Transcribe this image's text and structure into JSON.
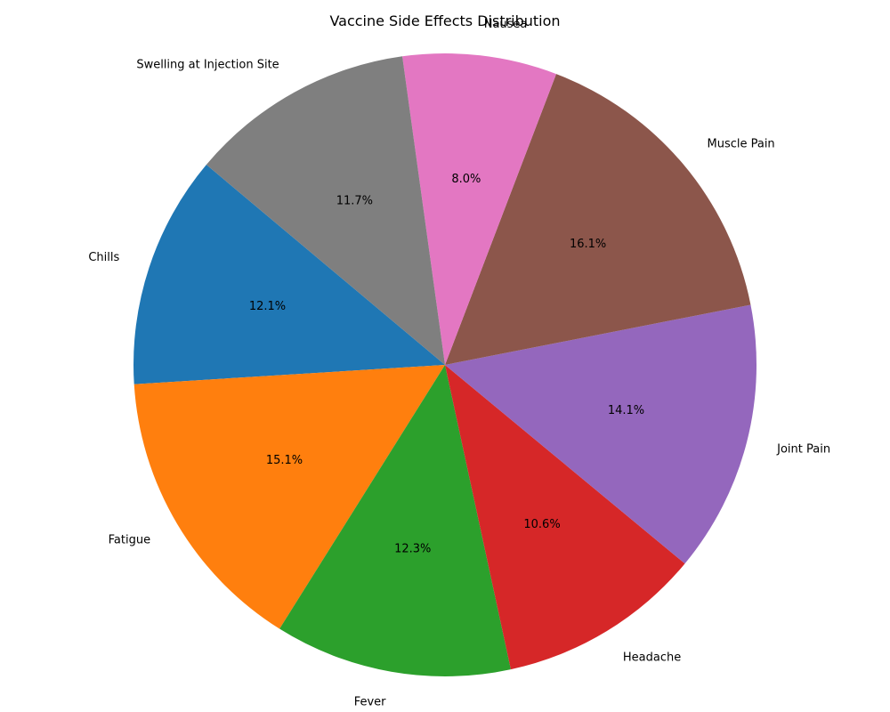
{
  "chart_data": {
    "type": "pie",
    "title": "Vaccine Side Effects Distribution",
    "categories": [
      "Chills",
      "Fatigue",
      "Fever",
      "Headache",
      "Joint Pain",
      "Muscle Pain",
      "Nausea",
      "Swelling at Injection Site"
    ],
    "values": [
      12.1,
      15.1,
      12.3,
      10.6,
      14.1,
      16.1,
      8.0,
      11.7
    ],
    "value_labels": [
      "12.1%",
      "15.1%",
      "12.3%",
      "10.6%",
      "14.1%",
      "16.1%",
      "8.0%",
      "11.7%"
    ],
    "colors": [
      "#1f77b4",
      "#ff7f0e",
      "#2ca02c",
      "#d62728",
      "#9467bd",
      "#8c564b",
      "#e377c2",
      "#7f7f7f"
    ],
    "start_angle_deg": 140,
    "direction": "counterclockwise",
    "legend": "none"
  }
}
